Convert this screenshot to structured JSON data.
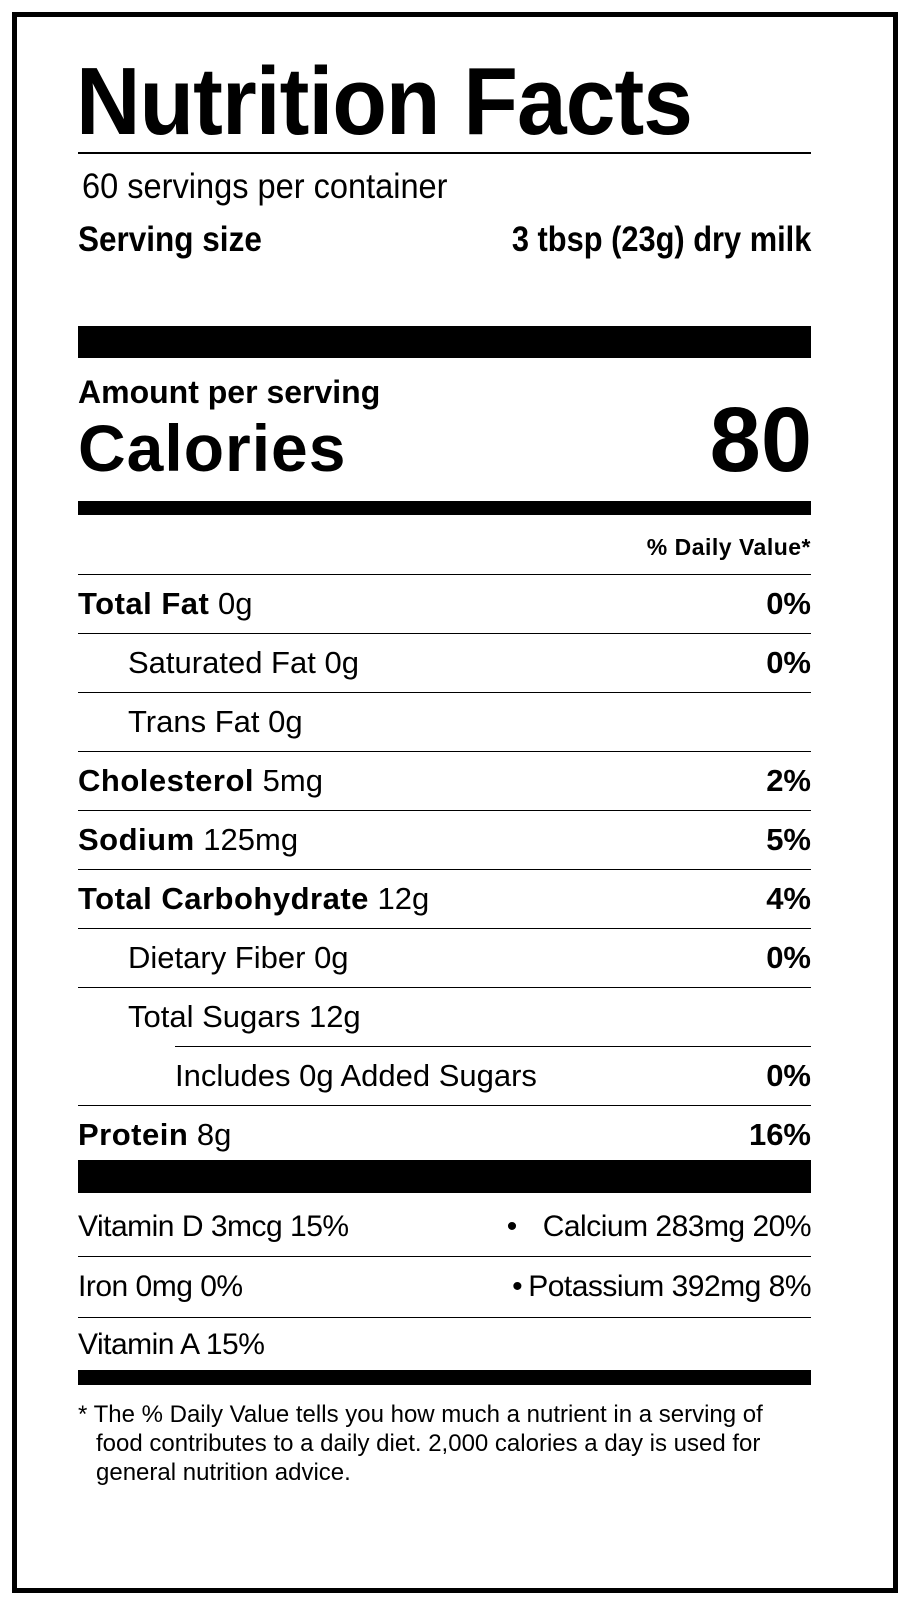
{
  "title": "Nutrition Facts",
  "servings_per_container": {
    "count": "60",
    "label": "servings per container"
  },
  "serving_size": {
    "label": "Serving size",
    "value": "3 tbsp (23g) dry milk"
  },
  "amount_per_serving": "Amount per serving",
  "calories": {
    "label": "Calories",
    "value": "80"
  },
  "daily_value_header": "% Daily Value*",
  "nutrients": [
    {
      "name": "Total Fat",
      "amount": "0g",
      "dv": "0%",
      "bold": true,
      "indent": 0
    },
    {
      "name": "Saturated Fat",
      "amount": "0g",
      "dv": "0%",
      "bold": false,
      "indent": 1
    },
    {
      "name": "Trans Fat",
      "amount": "0g",
      "dv": "",
      "bold": false,
      "indent": 1
    },
    {
      "name": "Cholesterol",
      "amount": "5mg",
      "dv": "2%",
      "bold": true,
      "indent": 0
    },
    {
      "name": "Sodium",
      "amount": "125mg",
      "dv": "5%",
      "bold": true,
      "indent": 0
    },
    {
      "name": "Total Carbohydrate",
      "amount": "12g",
      "dv": "4%",
      "bold": true,
      "indent": 0
    },
    {
      "name": "Dietary Fiber",
      "amount": "0g",
      "dv": "0%",
      "bold": false,
      "indent": 1
    },
    {
      "name": "Total Sugars",
      "amount": "12g",
      "dv": "",
      "bold": false,
      "indent": 1
    },
    {
      "name": "Includes 0g Added Sugars",
      "amount": "",
      "dv": "0%",
      "bold": false,
      "indent": 2
    },
    {
      "name": "Protein",
      "amount": "8g",
      "dv": "16%",
      "bold": true,
      "indent": 0
    }
  ],
  "vitamins": [
    {
      "left": "Vitamin D 3mcg 15%",
      "right": "Calcium 283mg 20%"
    },
    {
      "left": "Iron 0mg 0%",
      "right": "Potassium 392mg 8%"
    },
    {
      "left": "Vitamin A 15%",
      "right": ""
    }
  ],
  "bullet": "•",
  "footnote": "* The % Daily Value tells you how much a nutrient in a serving of food contributes to a daily diet. 2,000 calories a day is used for general nutrition advice."
}
